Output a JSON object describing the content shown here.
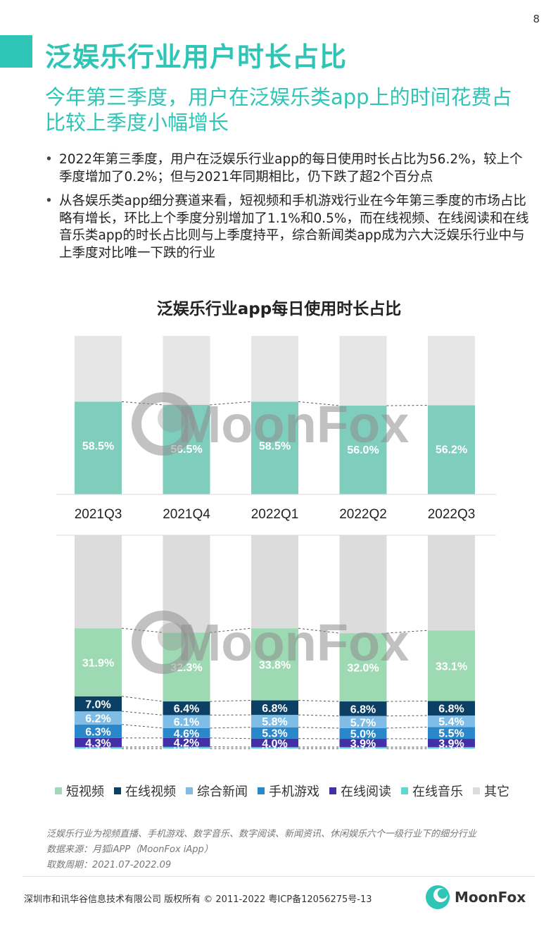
{
  "page_number": "8",
  "title": "泛娱乐行业用户时长占比",
  "subtitle": "今年第三季度，用户在泛娱乐类app上的时间花费占比较上季度小幅增长",
  "bullets": [
    "2022年第三季度，用户在泛娱乐行业app的每日使用时长占比为56.2%，较上个季度增加了0.2%；但与2021年同期相比，仍下跌了超2个百分点",
    "从各娱乐类app细分赛道来看，短视频和手机游戏行业在今年第三季度的市场占比略有增长，环比上个季度分别增加了1.1%和0.5%，而在线视频、在线阅读和在线音乐类app的时长占比则与上季度持平，综合新闻类app成为六大泛娱乐行业中与上季度对比唯一下跌的行业"
  ],
  "watermark": "MoonFox",
  "chart_data": [
    {
      "type": "bar",
      "stacked": true,
      "title": "泛娱乐行业app每日使用时长占比",
      "categories": [
        "2021Q3",
        "2021Q4",
        "2022Q1",
        "2022Q2",
        "2022Q3"
      ],
      "values": [
        58.5,
        56.5,
        58.5,
        56.0,
        56.2
      ],
      "labels": [
        "58.5%",
        "56.5%",
        "58.5%",
        "56.0%",
        "56.2%"
      ],
      "ylim": [
        0,
        100
      ],
      "colors": {
        "value": "#7ecdbd",
        "rest": "#e6e6e6"
      }
    },
    {
      "type": "bar",
      "stacked": true,
      "categories": [
        "2021Q3",
        "2021Q4",
        "2022Q1",
        "2022Q2",
        "2022Q3"
      ],
      "series": [
        {
          "name": "短视频",
          "color": "#9dd9b2",
          "text_color": "#ffffff",
          "values": [
            31.9,
            32.3,
            33.8,
            32.0,
            33.1
          ]
        },
        {
          "name": "在线视频",
          "color": "#0b3f63",
          "text_color": "#ffffff",
          "values": [
            7.0,
            6.4,
            6.8,
            6.8,
            6.8
          ]
        },
        {
          "name": "综合新闻",
          "color": "#7fbde6",
          "text_color": "#ffffff",
          "values": [
            6.2,
            6.1,
            5.8,
            5.7,
            5.4
          ]
        },
        {
          "name": "手机游戏",
          "color": "#2a87c9",
          "text_color": "#ffffff",
          "values": [
            6.3,
            4.6,
            5.3,
            5.0,
            5.5
          ]
        },
        {
          "name": "在线阅读",
          "color": "#4330a6",
          "text_color": "#ffffff",
          "values": [
            4.3,
            4.2,
            4.0,
            3.9,
            3.9
          ]
        },
        {
          "name": "在线音乐",
          "color": "#5fd8cf",
          "text_color": "#ffffff",
          "values": [
            0.7,
            0.8,
            0.7,
            0.7,
            0.7
          ]
        },
        {
          "name": "其它",
          "color": "#dcdcdc",
          "text_color": "#ffffff",
          "values": [
            null,
            null,
            null,
            null,
            null
          ]
        }
      ]
    }
  ],
  "legend": [
    {
      "label": "短视频",
      "color": "#9dd9b2"
    },
    {
      "label": "在线视频",
      "color": "#0b3f63"
    },
    {
      "label": "综合新闻",
      "color": "#7fbde6"
    },
    {
      "label": "手机游戏",
      "color": "#2a87c9"
    },
    {
      "label": "在线阅读",
      "color": "#4330a6"
    },
    {
      "label": "在线音乐",
      "color": "#5fd8cf"
    },
    {
      "label": "其它",
      "color": "#dcdcdc"
    }
  ],
  "notes": [
    "泛娱乐行业为视频直播、手机游戏、数字音乐、数字阅读、新闻资讯、休闲娱乐六个一级行业下的细分行业",
    "数据来源：月狐iAPP（MoonFox iApp）",
    "取数周期：2021.07-2022.09"
  ],
  "footer": "深圳市和讯华谷信息技术有限公司 版权所有 © 2011-2022 粤ICP备12056275号-13",
  "logo_text": "MoonFox"
}
